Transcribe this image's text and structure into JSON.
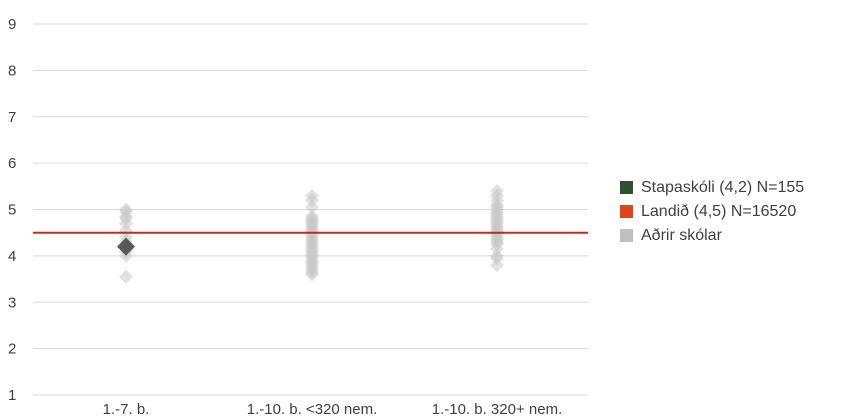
{
  "chart_data": {
    "type": "scatter",
    "categories": [
      "1.-7. b.",
      "1.-10. b. <320 nem.",
      "1.-10. b. 320+ nem."
    ],
    "y_ticks": [
      "1",
      "2",
      "3",
      "4",
      "5",
      "6",
      "7",
      "8",
      "9"
    ],
    "ylim": [
      1,
      9
    ],
    "grid": true,
    "legend_position": "right",
    "reference_line": {
      "value": 4.5,
      "color": "#c0292b"
    },
    "series": [
      {
        "name": "Stapaskóli (4,2) N=155",
        "color": "#2f5131",
        "marker_color": "#595959",
        "marker": "diamond",
        "points": [
          {
            "category": 0,
            "y": 4.2
          }
        ]
      },
      {
        "name": "Landið (4,5) N=16520",
        "color": "#e5421b",
        "line": true
      },
      {
        "name": "Aðrir skólar",
        "color": "#bfbfbf",
        "marker": "diamond",
        "points_by_category": [
          [
            3.55,
            4.0,
            4.1,
            4.2,
            4.3,
            4.4,
            4.55,
            4.7,
            4.8,
            4.85,
            4.95,
            5.0
          ],
          [
            3.6,
            3.65,
            3.7,
            3.75,
            3.8,
            3.85,
            3.9,
            3.95,
            4.0,
            4.05,
            4.1,
            4.15,
            4.2,
            4.25,
            4.3,
            4.35,
            4.4,
            4.45,
            4.5,
            4.55,
            4.6,
            4.65,
            4.7,
            4.75,
            4.8,
            4.85,
            5.05,
            5.2,
            5.3
          ],
          [
            3.8,
            3.95,
            4.0,
            4.15,
            4.25,
            4.3,
            4.35,
            4.4,
            4.45,
            4.5,
            4.55,
            4.6,
            4.65,
            4.7,
            4.75,
            4.8,
            4.85,
            4.9,
            4.95,
            5.0,
            5.05,
            5.1,
            5.2,
            5.3,
            5.4
          ]
        ]
      }
    ]
  }
}
